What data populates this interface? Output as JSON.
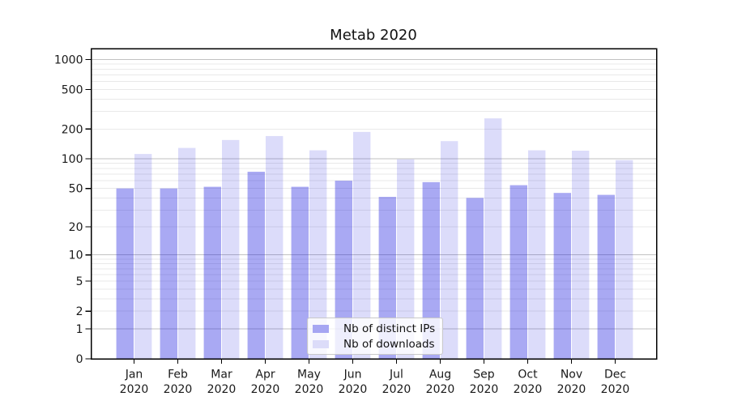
{
  "chart_data": {
    "type": "bar",
    "title": "Metab 2020",
    "yscale": "symlog-log1p",
    "categories": [
      "Jan 2020",
      "Feb 2020",
      "Mar 2020",
      "Apr 2020",
      "May 2020",
      "Jun 2020",
      "Jul 2020",
      "Aug 2020",
      "Sep 2020",
      "Oct 2020",
      "Nov 2020",
      "Dec 2020"
    ],
    "series": [
      {
        "name": "Nb of distinct IPs",
        "color": "#a6a6f2",
        "fill": "rgba(17,17,221,0.36)",
        "values": [
          50,
          50,
          52,
          74,
          52,
          60,
          41,
          58,
          40,
          54,
          45,
          43
        ]
      },
      {
        "name": "Nb of downloads",
        "color": "#dcdcf9",
        "fill": "rgba(17,17,221,0.15)",
        "values": [
          112,
          129,
          155,
          170,
          122,
          187,
          99,
          151,
          256,
          122,
          121,
          97
        ]
      }
    ],
    "yticks": [
      0,
      1,
      2,
      5,
      10,
      20,
      50,
      100,
      200,
      500,
      1000
    ],
    "major_gridline_values": [
      1,
      10,
      100,
      1000
    ],
    "ylim": [
      0,
      1285
    ],
    "grid": "major-and-minor",
    "legend_position": "lower center",
    "colors": {
      "major_grid": "#c2c2c2",
      "minor_grid": "#e9e9e9",
      "spine": "#000000",
      "text": "#1a1a1a"
    }
  }
}
